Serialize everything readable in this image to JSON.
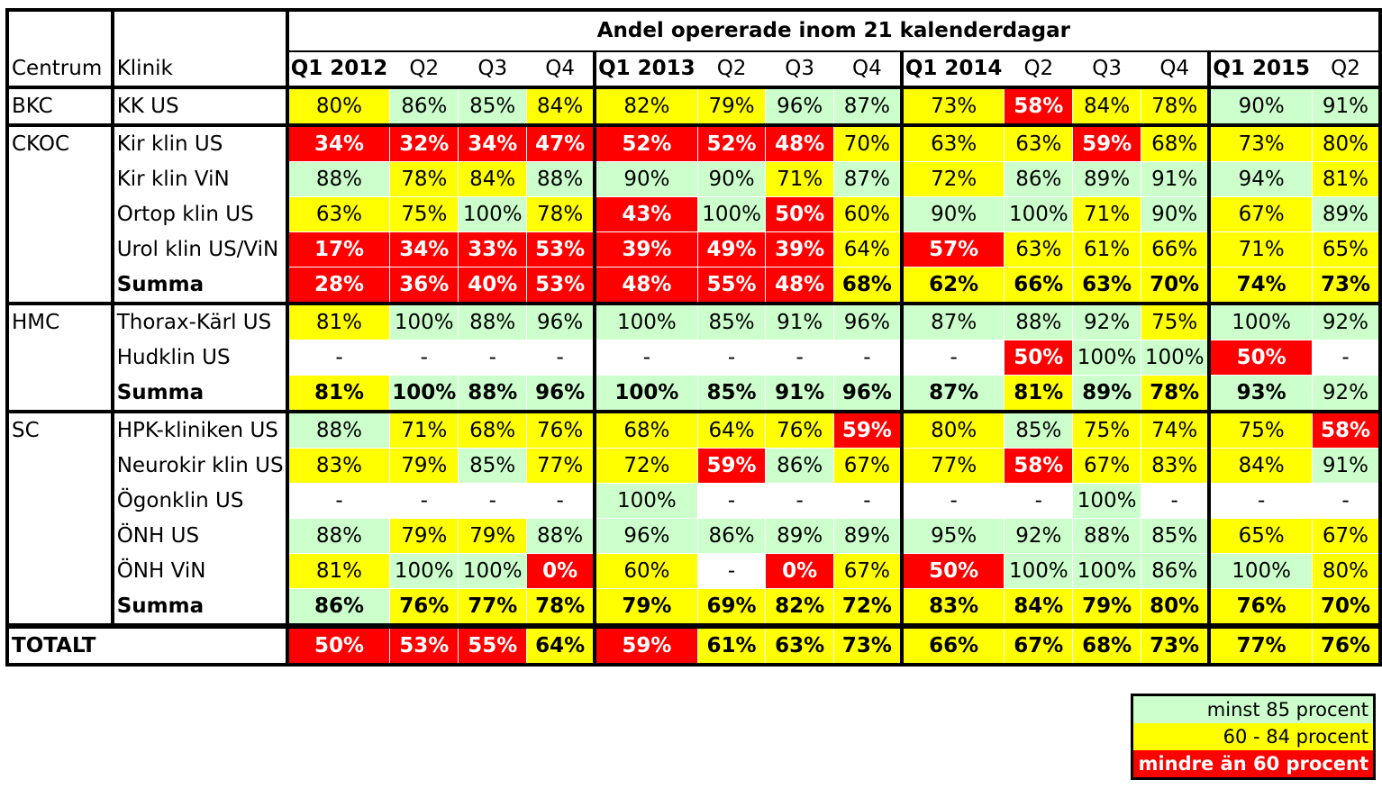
{
  "header": {
    "centrum": "Centrum",
    "klinik": "Klinik",
    "title": "Andel opererade inom 21 kalenderdagar"
  },
  "chart_data": {
    "type": "table",
    "title": "Andel opererade inom 21 kalenderdagar",
    "columns": [
      "Q1 2012",
      "Q2",
      "Q3",
      "Q4",
      "Q1 2013",
      "Q2",
      "Q3",
      "Q4",
      "Q1 2014",
      "Q2",
      "Q3",
      "Q4",
      "Q1 2015",
      "Q2"
    ],
    "column_bold": [
      true,
      false,
      false,
      false,
      true,
      false,
      false,
      false,
      true,
      false,
      false,
      false,
      true,
      false
    ],
    "groups": [
      {
        "centrum": "BKC",
        "rows": [
          {
            "klinik": "KK US",
            "bold": false,
            "values": [
              "80%",
              "86%",
              "85%",
              "84%",
              "82%",
              "79%",
              "96%",
              "87%",
              "73%",
              "58%",
              "84%",
              "78%",
              "90%",
              "91%"
            ]
          }
        ]
      },
      {
        "centrum": "CKOC",
        "rows": [
          {
            "klinik": "Kir klin US",
            "bold": false,
            "values": [
              "34%",
              "32%",
              "34%",
              "47%",
              "52%",
              "52%",
              "48%",
              "70%",
              "63%",
              "63%",
              "59%",
              "68%",
              "73%",
              "80%"
            ]
          },
          {
            "klinik": "Kir klin ViN",
            "bold": false,
            "values": [
              "88%",
              "78%",
              "84%",
              "88%",
              "90%",
              "90%",
              "71%",
              "87%",
              "72%",
              "86%",
              "89%",
              "91%",
              "94%",
              "81%"
            ]
          },
          {
            "klinik": "Ortop klin US",
            "bold": false,
            "values": [
              "63%",
              "75%",
              "100%",
              "78%",
              "43%",
              "100%",
              "50%",
              "60%",
              "90%",
              "100%",
              "71%",
              "90%",
              "67%",
              "89%"
            ]
          },
          {
            "klinik": "Urol klin US/ViN",
            "bold": false,
            "values": [
              "17%",
              "34%",
              "33%",
              "53%",
              "39%",
              "49%",
              "39%",
              "64%",
              "57%",
              "63%",
              "61%",
              "66%",
              "71%",
              "65%"
            ]
          },
          {
            "klinik": "Summa",
            "bold": true,
            "values": [
              "28%",
              "36%",
              "40%",
              "53%",
              "48%",
              "55%",
              "48%",
              "68%",
              "62%",
              "66%",
              "63%",
              "70%",
              "74%",
              "73%"
            ]
          }
        ]
      },
      {
        "centrum": "HMC",
        "rows": [
          {
            "klinik": "Thorax-Kärl US",
            "bold": false,
            "values": [
              "81%",
              "100%",
              "88%",
              "96%",
              "100%",
              "85%",
              "91%",
              "96%",
              "87%",
              "88%",
              "92%",
              "75%",
              "100%",
              "92%"
            ]
          },
          {
            "klinik": "Hudklin US",
            "bold": false,
            "values": [
              "-",
              "-",
              "-",
              "-",
              "-",
              "-",
              "-",
              "-",
              "-",
              "50%",
              "100%",
              "100%",
              "50%",
              "-"
            ]
          },
          {
            "klinik": "Summa",
            "bold": true,
            "values": [
              "81%",
              "100%",
              "88%",
              "96%",
              "100%",
              "85%",
              "91%",
              "96%",
              "87%",
              "81%",
              "89%",
              "78%",
              "93%",
              "92%"
            ]
          }
        ]
      },
      {
        "centrum": "SC",
        "rows": [
          {
            "klinik": "HPK-kliniken US",
            "bold": false,
            "values": [
              "88%",
              "71%",
              "68%",
              "76%",
              "68%",
              "64%",
              "76%",
              "59%",
              "80%",
              "85%",
              "75%",
              "74%",
              "75%",
              "58%"
            ]
          },
          {
            "klinik": "Neurokir klin US",
            "bold": false,
            "values": [
              "83%",
              "79%",
              "85%",
              "77%",
              "72%",
              "59%",
              "86%",
              "67%",
              "77%",
              "58%",
              "67%",
              "83%",
              "84%",
              "91%"
            ]
          },
          {
            "klinik": "Ögonklin US",
            "bold": false,
            "values": [
              "-",
              "-",
              "-",
              "-",
              "100%",
              "-",
              "-",
              "-",
              "-",
              "-",
              "100%",
              "-",
              "-",
              "-"
            ]
          },
          {
            "klinik": "ÖNH US",
            "bold": false,
            "values": [
              "88%",
              "79%",
              "79%",
              "88%",
              "96%",
              "86%",
              "89%",
              "89%",
              "95%",
              "92%",
              "88%",
              "85%",
              "65%",
              "67%"
            ]
          },
          {
            "klinik": "ÖNH ViN",
            "bold": false,
            "values": [
              "81%",
              "100%",
              "100%",
              "0%",
              "60%",
              "-",
              "0%",
              "67%",
              "50%",
              "100%",
              "100%",
              "86%",
              "100%",
              "80%"
            ]
          },
          {
            "klinik": "Summa",
            "bold": true,
            "values": [
              "86%",
              "76%",
              "77%",
              "78%",
              "79%",
              "69%",
              "82%",
              "72%",
              "83%",
              "84%",
              "79%",
              "80%",
              "76%",
              "70%"
            ]
          }
        ]
      }
    ],
    "total": {
      "label": "TOTALT",
      "values": [
        "50%",
        "53%",
        "55%",
        "64%",
        "59%",
        "61%",
        "63%",
        "73%",
        "66%",
        "67%",
        "68%",
        "73%",
        "77%",
        "76%"
      ]
    },
    "bold_cells": [
      {
        "row": "Summa-HMC",
        "cols": [
          13
        ],
        "note": "last value not bold"
      }
    ],
    "legend": [
      {
        "label": "minst 85 procent",
        "color": "#ccffcc",
        "bold": false
      },
      {
        "label": "60 - 84 procent",
        "color": "#ffff00",
        "bold": false
      },
      {
        "label": "mindre än 60 procent",
        "color": "#ff0000",
        "bold": true
      }
    ]
  }
}
